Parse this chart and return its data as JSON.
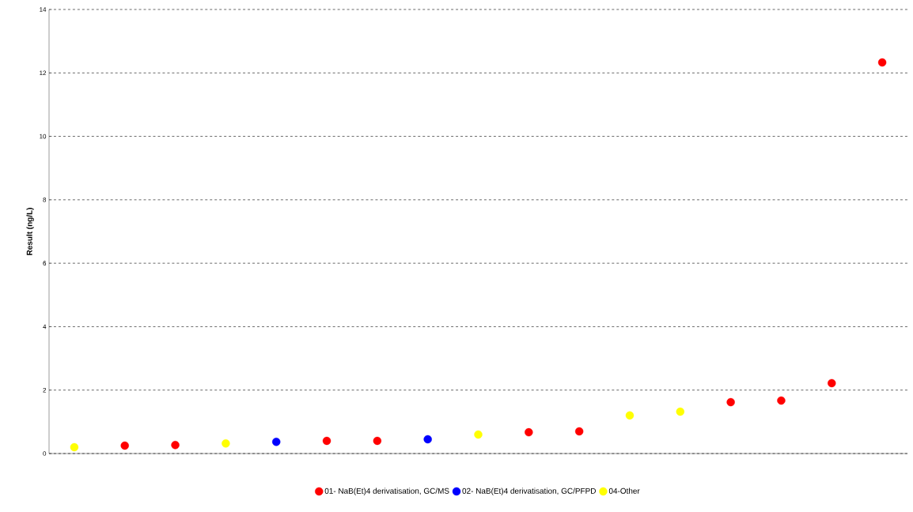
{
  "chart_data": {
    "type": "scatter",
    "ylabel": "Result (ng/L)",
    "categories": [
      null,
      null,
      null,
      null,
      null,
      null,
      null,
      null,
      null,
      null,
      null,
      null,
      null,
      null,
      null,
      null,
      null
    ],
    "series": [
      {
        "name": "01- NaB(Et)4 derivatisation, GC/MS",
        "color": "#ff0000",
        "values": [
          null,
          0.25,
          0.27,
          null,
          null,
          0.4,
          0.4,
          null,
          null,
          0.67,
          0.7,
          null,
          null,
          1.62,
          1.67,
          2.22,
          12.33
        ]
      },
      {
        "name": "02- NaB(Et)4 derivatisation, GC/PFPD",
        "color": "#0000ff",
        "values": [
          null,
          null,
          null,
          null,
          0.37,
          null,
          null,
          0.45,
          null,
          null,
          null,
          null,
          null,
          null,
          null,
          null,
          null
        ]
      },
      {
        "name": "04-Other",
        "color": "#ffff00",
        "values": [
          0.2,
          null,
          null,
          0.32,
          null,
          null,
          null,
          null,
          0.6,
          null,
          null,
          1.2,
          1.32,
          null,
          null,
          null,
          null
        ]
      }
    ],
    "ylim": [
      0,
      14
    ],
    "yticks": [
      0,
      2,
      4,
      6,
      8,
      10,
      12,
      14
    ],
    "grid": "y",
    "legend": "bottom",
    "marker": "circle",
    "tick_labels": "y"
  }
}
